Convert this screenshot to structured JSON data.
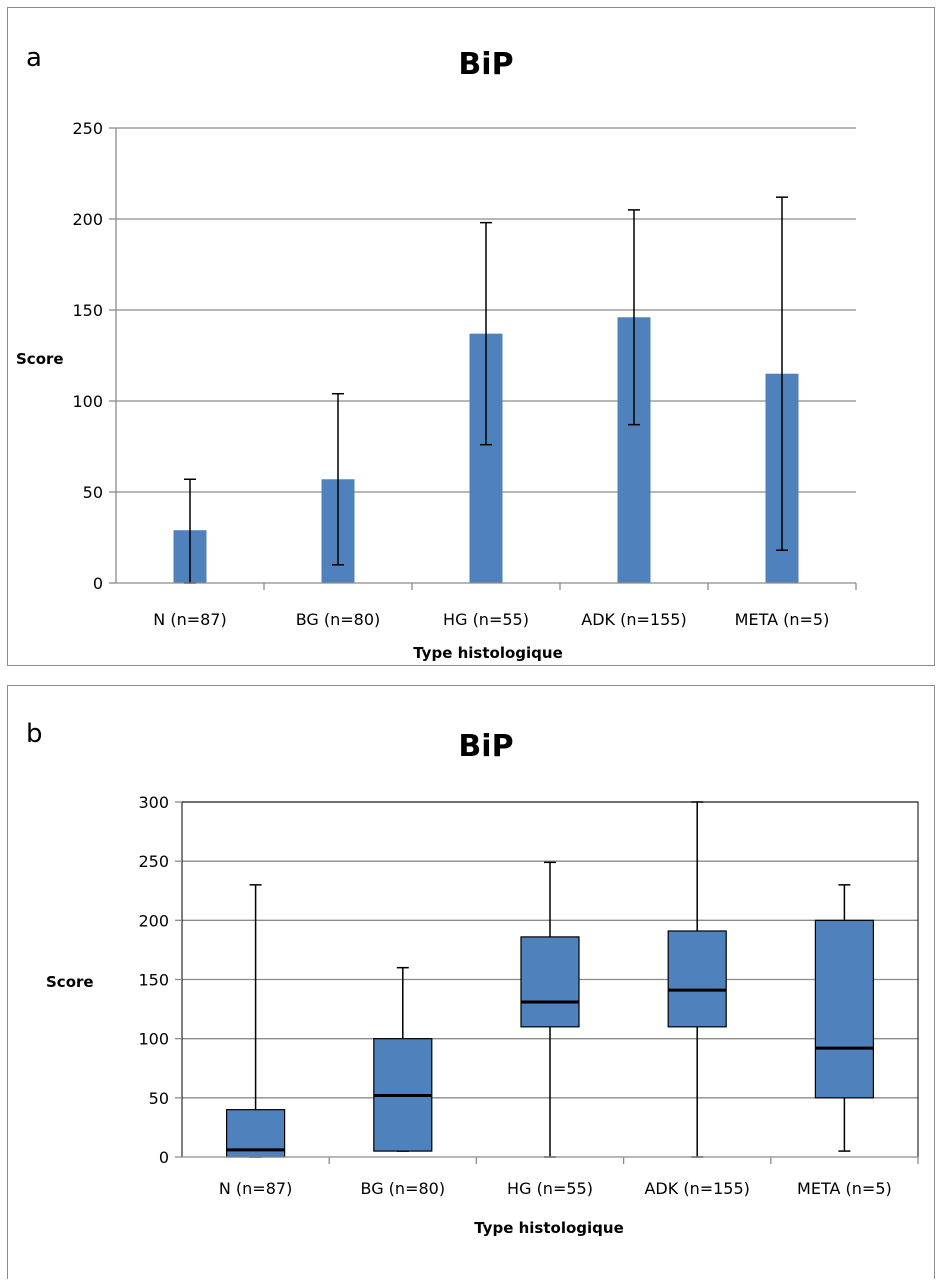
{
  "colors": {
    "bar": "#4f81bd",
    "gridline": "#8c8c8c",
    "whisker": "#000000"
  },
  "chart_data": [
    {
      "type": "bar",
      "panel_label": "a",
      "title": "BiP",
      "xlabel": "Type histologique",
      "ylabel": "Score",
      "ylim": [
        0,
        250
      ],
      "yticks": [
        0,
        50,
        100,
        150,
        200,
        250
      ],
      "grid": true,
      "categories": [
        "N (n=87)",
        "BG (n=80)",
        "HG (n=55)",
        "ADK (n=155)",
        "META (n=5)"
      ],
      "values": [
        29,
        57,
        137,
        146,
        115
      ],
      "error_low": [
        0,
        10,
        76,
        87,
        18
      ],
      "error_high": [
        57,
        104,
        198,
        205,
        212
      ]
    },
    {
      "type": "box",
      "panel_label": "b",
      "title": "BiP",
      "xlabel": "Type histologique",
      "ylabel": "Score",
      "ylim": [
        0,
        300
      ],
      "yticks": [
        0,
        50,
        100,
        150,
        200,
        250,
        300
      ],
      "grid": true,
      "categories": [
        "N (n=87)",
        "BG (n=80)",
        "HG (n=55)",
        "ADK (n=155)",
        "META (n=5)"
      ],
      "boxes": [
        {
          "min": 0,
          "q1": 0,
          "median": 6,
          "q3": 40,
          "max": 230
        },
        {
          "min": 5,
          "q1": 5,
          "median": 52,
          "q3": 100,
          "max": 160
        },
        {
          "min": 0,
          "q1": 110,
          "median": 131,
          "q3": 186,
          "max": 249
        },
        {
          "min": 0,
          "q1": 110,
          "median": 141,
          "q3": 191,
          "max": 300
        },
        {
          "min": 5,
          "q1": 50,
          "median": 92,
          "q3": 200,
          "max": 230
        }
      ]
    }
  ]
}
